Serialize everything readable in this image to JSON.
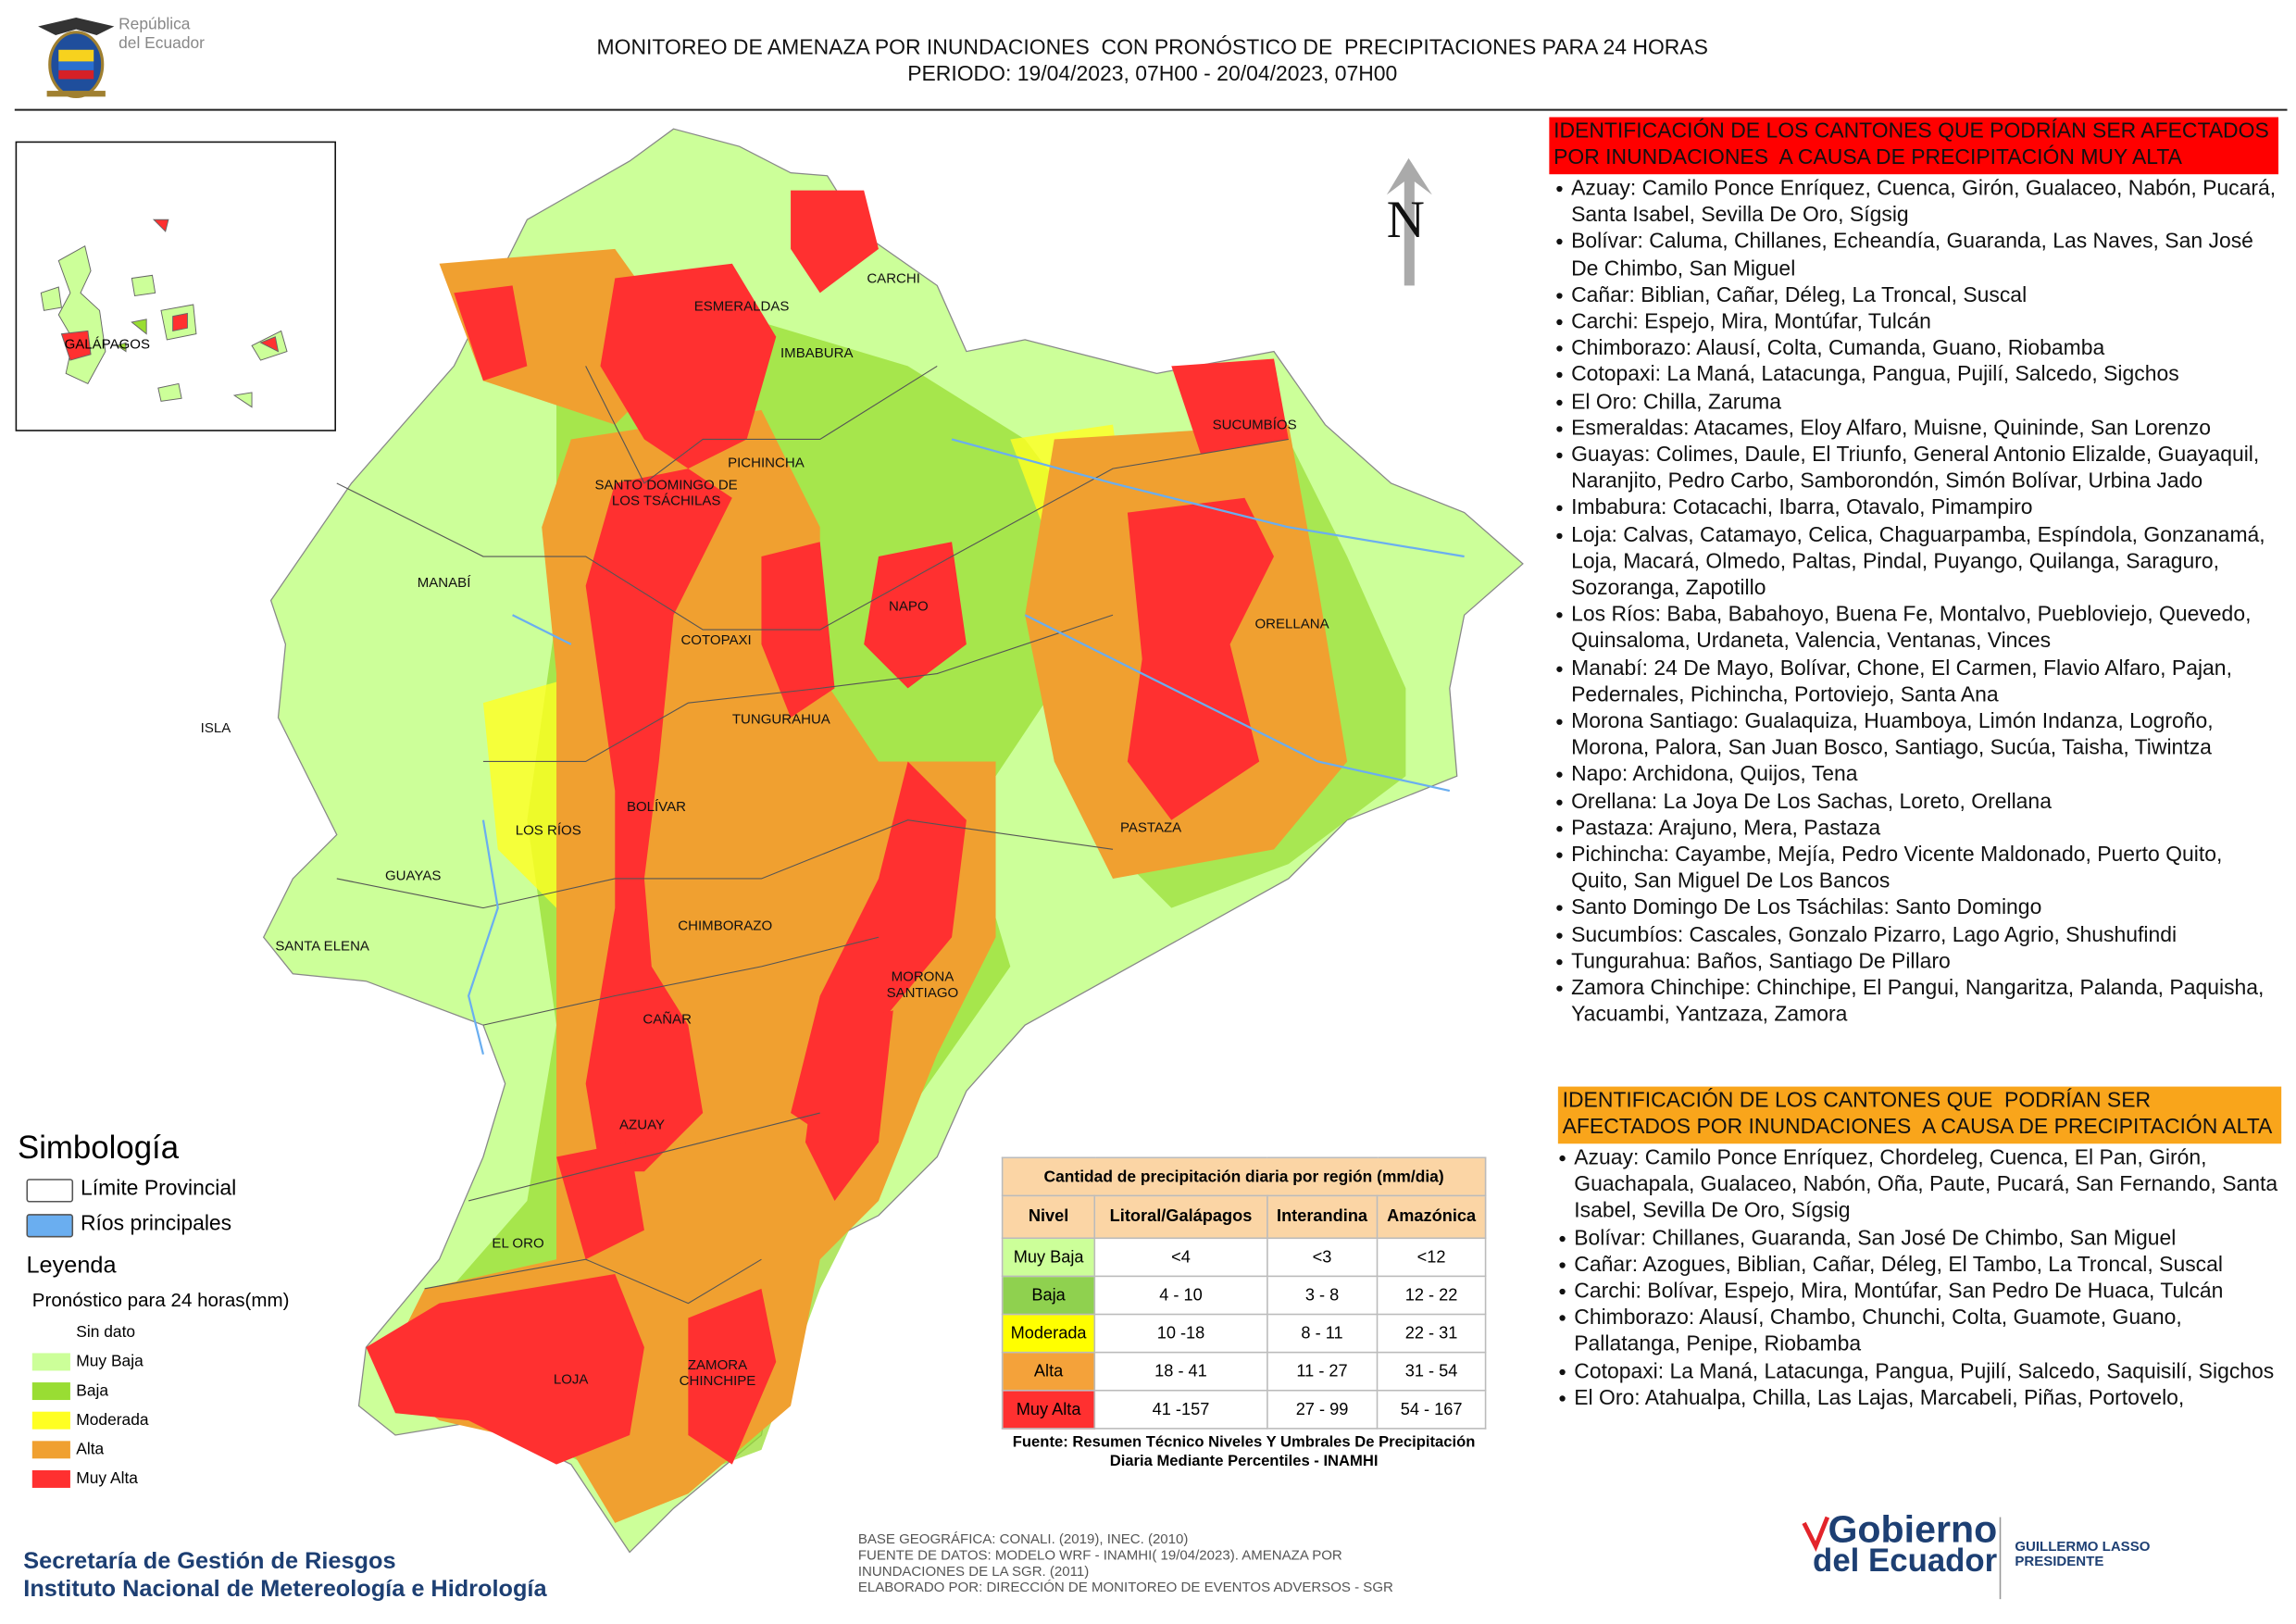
{
  "header": {
    "logo": [
      "República",
      "del Ecuador"
    ],
    "title": "MONITOREO DE AMENAZA POR INUNDACIONES  CON PRONÓSTICO DE  PRECIPITACIONES PARA 24 HORAS",
    "period": "PERIODO: 19/04/2023, 07H00 - 20/04/2023, 07H00"
  },
  "map": {
    "north": "N",
    "inset_label": "GALÁPAGOS",
    "provinces": [
      "ESMERALDAS",
      "CARCHI",
      "IMBABURA",
      "SUCUMBÍOS",
      "PICHINCHA",
      "SANTO DOMINGO DE LOS TSÁCHILAS",
      "MANABÍ",
      "NAPO",
      "ORELLANA",
      "COTOPAXI",
      "ISLA",
      "TUNGURAHUA",
      "BOLÍVAR",
      "LOS RÍOS",
      "PASTAZA",
      "GUAYAS",
      "CHIMBORAZO",
      "SANTA ELENA",
      "MORONA SANTIAGO",
      "CAÑAR",
      "AZUAY",
      "EL ORO",
      "LOJA",
      "ZAMORA CHINCHIPE"
    ]
  },
  "legend": {
    "title": "Simbología",
    "symbols": [
      {
        "label": "Límite Provincial",
        "color": "#ffffff"
      },
      {
        "label": "Ríos principales",
        "color": "#6aaef0"
      }
    ],
    "heading": "Leyenda",
    "subtitle": "Pronóstico para 24 horas(mm)",
    "classes": [
      {
        "label": "Sin dato",
        "color": "#ffffff"
      },
      {
        "label": "Muy Baja",
        "color": "#ccff99"
      },
      {
        "label": "Baja",
        "color": "#99dd33"
      },
      {
        "label": "Moderada",
        "color": "#ffff22"
      },
      {
        "label": "Alta",
        "color": "#f0a030"
      },
      {
        "label": "Muy Alta",
        "color": "#ff3030"
      }
    ]
  },
  "table": {
    "title": "Cantidad de precipitación diaria por región (mm/dia)",
    "headers": [
      "Nivel",
      "Litoral/Galápagos",
      "Interandina",
      "Amazónica"
    ],
    "rows": [
      [
        "Muy Baja",
        "<4",
        "<3",
        "<12"
      ],
      [
        "Baja",
        "4 - 10",
        "3 - 8",
        "12 - 22"
      ],
      [
        "Moderada",
        "10 -18",
        "8 - 11",
        "22 - 31"
      ],
      [
        "Alta",
        "18 - 41",
        "11 - 27",
        "31 - 54"
      ],
      [
        "Muy Alta",
        "41 -157",
        "27 - 99",
        "54 - 167"
      ]
    ],
    "row_colors": [
      "#ccff99",
      "#8fd14f",
      "#ffff00",
      "#f4a23a",
      "#ff3030"
    ],
    "header_color": "#fbd5a5",
    "source": "Fuente: Resumen Técnico Niveles Y Umbrales De Precipitación Diaria Mediante Percentiles - INAMHI"
  },
  "lists": [
    {
      "heading": "IDENTIFICACIÓN DE LOS CANTONES QUE PODRÍAN SER AFECTADOS POR INUNDACIONES  A CAUSA DE PRECIPITACIÓN MUY ALTA",
      "color": "#ff0000",
      "items": [
        "Azuay: Camilo Ponce Enríquez, Cuenca, Girón, Gualaceo, Nabón, Pucará, Santa Isabel, Sevilla De Oro, Sígsig",
        "Bolívar: Caluma, Chillanes, Echeandía, Guaranda, Las Naves, San José De Chimbo, San Miguel",
        "Cañar: Biblian, Cañar, Déleg, La Troncal, Suscal",
        "Carchi: Espejo, Mira, Montúfar, Tulcán",
        "Chimborazo: Alausí, Colta, Cumanda, Guano, Riobamba",
        "Cotopaxi: La Maná, Latacunga, Pangua, Pujilí, Salcedo, Sigchos",
        "El Oro: Chilla, Zaruma",
        "Esmeraldas: Atacames, Eloy Alfaro, Muisne, Quininde, San Lorenzo",
        "Guayas: Colimes, Daule, El Triunfo, General Antonio Elizalde, Guayaquil, Naranjito, Pedro Carbo, Samborondón, Simón Bolívar, Urbina Jado",
        "Imbabura: Cotacachi, Ibarra, Otavalo, Pimampiro",
        "Loja: Calvas, Catamayo, Celica, Chaguarpamba, Espíndola, Gonzanamá, Loja, Macará, Olmedo, Paltas, Pindal, Puyango, Quilanga, Saraguro, Sozoranga, Zapotillo",
        "Los Ríos: Baba, Babahoyo, Buena Fe, Montalvo, Puebloviejo, Quevedo, Quinsaloma, Urdaneta, Valencia, Ventanas, Vinces",
        "Manabí: 24 De Mayo, Bolívar, Chone, El Carmen, Flavio Alfaro, Pajan, Pedernales, Pichincha, Portoviejo, Santa Ana",
        "Morona Santiago: Gualaquiza, Huamboya, Limón Indanza, Logroño, Morona, Palora, San Juan Bosco, Santiago, Sucúa, Taisha, Tiwintza",
        "Napo: Archidona, Quijos, Tena",
        "Orellana: La Joya De Los Sachas, Loreto, Orellana",
        "Pastaza: Arajuno, Mera, Pastaza",
        "Pichincha: Cayambe, Mejía, Pedro Vicente Maldonado, Puerto Quito, Quito, San Miguel De Los Bancos",
        "Santo Domingo De Los Tsáchilas: Santo Domingo",
        "Sucumbíos: Cascales, Gonzalo Pizarro, Lago Agrio, Shushufindi",
        "Tungurahua: Baños, Santiago De Pillaro",
        "Zamora Chinchipe: Chinchipe, El Pangui, Nangaritza, Palanda, Paquisha, Yacuambi, Yantzaza, Zamora"
      ]
    },
    {
      "heading": "IDENTIFICACIÓN DE LOS CANTONES QUE  PODRÍAN SER AFECTADOS POR INUNDACIONES  A CAUSA DE PRECIPITACIÓN ALTA",
      "color": "#f9a51b",
      "items": [
        "Azuay: Camilo Ponce Enríquez, Chordeleg, Cuenca, El Pan, Girón, Guachapala, Gualaceo, Nabón, Oña, Paute, Pucará, San Fernando, Santa Isabel, Sevilla De Oro, Sígsig",
        "Bolívar: Chillanes, Guaranda, San José De Chimbo, San Miguel",
        "Cañar: Azogues, Biblian, Cañar, Déleg, El Tambo, La Troncal, Suscal",
        "Carchi: Bolívar, Espejo, Mira, Montúfar, San Pedro De Huaca, Tulcán",
        "Chimborazo: Alausí, Chambo, Chunchi, Colta, Guamote, Guano, Pallatanga, Penipe, Riobamba",
        "Cotopaxi: La Maná, Latacunga, Pangua, Pujilí, Salcedo, Saquisilí, Sigchos",
        "El Oro: Atahualpa, Chilla, Las Lajas, Marcabeli, Piñas, Portovelo,"
      ]
    }
  ],
  "footer": {
    "org": [
      "Secretaría de Gestión de Riesgos",
      "Instituto Nacional de Metereología e Hidrología"
    ],
    "credits": [
      "BASE GEOGRÁFICA: CONALI. (2019), INEC. (2010)",
      "FUENTE DE DATOS: MODELO WRF - INAMHI( 19/04/2023).  AMENAZA POR INUNDACIONES DE LA SGR. (2011)",
      "ELABORADO POR: DIRECCIÓN DE MONITOREO DE EVENTOS ADVERSOS - SGR"
    ],
    "gobierno": [
      "Gobierno",
      "del Ecuador"
    ],
    "president": [
      "GUILLERMO LASSO",
      "PRESIDENTE"
    ]
  }
}
